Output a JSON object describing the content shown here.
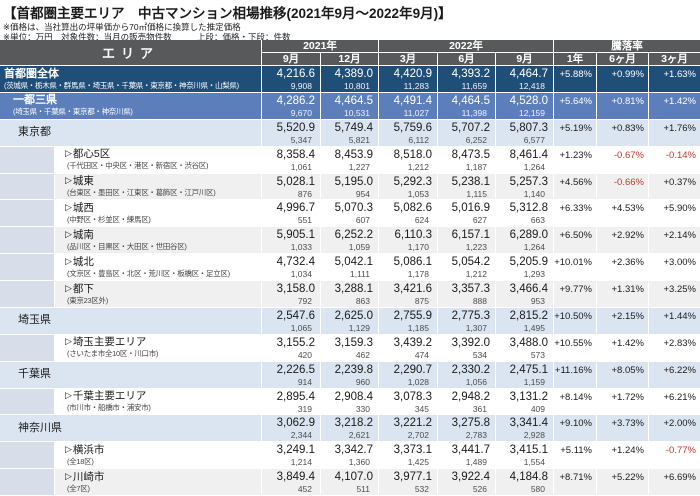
{
  "title": "【首都圏主要エリア　中古マンション相場推移(2021年9月～2022年9月)】",
  "notes": {
    "note1": "※価格は、当社算出の坪単価から70㎡価格に換算した推定価格",
    "note2": "※単位：万円　対象件数：当月の販売物件数",
    "legend": "上段：価格・下段：件数"
  },
  "header": {
    "area_label": "エリア",
    "groups": [
      "2021年",
      "2022年",
      "騰落率"
    ],
    "columns": [
      "9月",
      "12月",
      "3月",
      "6月",
      "9月",
      "1年",
      "6ヶ月",
      "3ヶ月"
    ]
  },
  "config": {
    "triangle_marker": "▷",
    "colors": {
      "header_bg": "#58595b",
      "region1_bg": "#1f4e79",
      "region2_bg": "#5c7fbc",
      "prefecture_bg": "#dbe5f1",
      "stripe_bg": "#f0f0f0",
      "indent_strip_bg": "#d8dee9",
      "negative_rate": "#c0392b"
    }
  },
  "chart_data": {
    "type": "table",
    "title": "首都圏主要エリア 中古マンション相場推移(2021年9月～2022年9月)",
    "unit": "万円",
    "value_legend": "上段：価格・下段：件数",
    "columns": [
      "エリア",
      "2021年9月",
      "2021年12月",
      "2022年3月",
      "2022年6月",
      "2022年9月",
      "騰落率1年",
      "騰落率6ヶ月",
      "騰落率3ヶ月"
    ],
    "rows": [
      {
        "name": "首都圏全体",
        "sub": "(茨城県・栃木県・群馬県・埼玉県・千葉県・東京都・神奈川県・山梨県)",
        "style": "region1",
        "indent": false,
        "prices": [
          "4,216.6",
          "4,389.0",
          "4,420.9",
          "4,393.2",
          "4,464.7"
        ],
        "counts": [
          "9,908",
          "10,801",
          "11,283",
          "11,659",
          "12,418"
        ],
        "rates": [
          "+5.88%",
          "+0.99%",
          "+1.63%"
        ]
      },
      {
        "name": "一都三県",
        "sub": "(埼玉県・千葉県・東京都・神奈川県)",
        "style": "region2",
        "indent": false,
        "prices": [
          "4,286.2",
          "4,464.5",
          "4,491.4",
          "4,464.5",
          "4,528.0"
        ],
        "counts": [
          "9,670",
          "10,531",
          "11,027",
          "11,398",
          "12,159"
        ],
        "rates": [
          "+5.64%",
          "+0.81%",
          "+1.42%"
        ]
      },
      {
        "name": "東京都",
        "sub": null,
        "style": "pref",
        "indent": false,
        "prices": [
          "5,520.9",
          "5,749.4",
          "5,759.6",
          "5,707.2",
          "5,807.3"
        ],
        "counts": [
          "5,347",
          "5,821",
          "6,112",
          "6,252",
          "6,577"
        ],
        "rates": [
          "+5.19%",
          "+0.83%",
          "+1.76%"
        ]
      },
      {
        "name": "都心5区",
        "sub": "(千代田区・中央区・港区・新宿区・渋谷区)",
        "style": "sub1",
        "indent": true,
        "prices": [
          "8,358.4",
          "8,453.9",
          "8,518.0",
          "8,473.5",
          "8,461.4"
        ],
        "counts": [
          "1,061",
          "1,227",
          "1,212",
          "1,187",
          "1,264"
        ],
        "rates": [
          "+1.23%",
          "-0.67%",
          "-0.14%"
        ]
      },
      {
        "name": "城東",
        "sub": "(台東区・墨田区・江東区・葛飾区・江戸川区)",
        "style": "sub2",
        "indent": true,
        "prices": [
          "5,028.1",
          "5,195.0",
          "5,292.3",
          "5,238.1",
          "5,257.3"
        ],
        "counts": [
          "876",
          "954",
          "1,053",
          "1,115",
          "1,140"
        ],
        "rates": [
          "+4.56%",
          "-0.66%",
          "+0.37%"
        ]
      },
      {
        "name": "城西",
        "sub": "(中野区・杉並区・練馬区)",
        "style": "sub1",
        "indent": true,
        "prices": [
          "4,996.7",
          "5,070.3",
          "5,082.6",
          "5,016.9",
          "5,312.8"
        ],
        "counts": [
          "551",
          "607",
          "624",
          "627",
          "663"
        ],
        "rates": [
          "+6.33%",
          "+4.53%",
          "+5.90%"
        ]
      },
      {
        "name": "城南",
        "sub": "(品川区・目黒区・大田区・世田谷区)",
        "style": "sub2",
        "indent": true,
        "prices": [
          "5,905.1",
          "6,252.2",
          "6,110.3",
          "6,157.1",
          "6,289.0"
        ],
        "counts": [
          "1,033",
          "1,059",
          "1,170",
          "1,223",
          "1,264"
        ],
        "rates": [
          "+6.50%",
          "+2.92%",
          "+2.14%"
        ]
      },
      {
        "name": "城北",
        "sub": "(文京区・豊島区・北区・荒川区・板橋区・足立区)",
        "style": "sub1",
        "indent": true,
        "prices": [
          "4,732.4",
          "5,042.1",
          "5,086.1",
          "5,054.2",
          "5,205.9"
        ],
        "counts": [
          "1,034",
          "1,111",
          "1,178",
          "1,212",
          "1,293"
        ],
        "rates": [
          "+10.01%",
          "+2.36%",
          "+3.00%"
        ]
      },
      {
        "name": "都下",
        "sub": "(東京23区外)",
        "style": "sub2",
        "indent": true,
        "prices": [
          "3,158.0",
          "3,288.1",
          "3,421.6",
          "3,357.3",
          "3,466.4"
        ],
        "counts": [
          "792",
          "863",
          "875",
          "888",
          "953"
        ],
        "rates": [
          "+9.77%",
          "+1.31%",
          "+3.25%"
        ]
      },
      {
        "name": "埼玉県",
        "sub": null,
        "style": "pref",
        "indent": false,
        "prices": [
          "2,547.6",
          "2,625.0",
          "2,755.9",
          "2,775.3",
          "2,815.2"
        ],
        "counts": [
          "1,065",
          "1,129",
          "1,185",
          "1,307",
          "1,495"
        ],
        "rates": [
          "+10.50%",
          "+2.15%",
          "+1.44%"
        ]
      },
      {
        "name": "埼玉主要エリア",
        "sub": "(さいたま市全10区・川口市)",
        "style": "sub1",
        "indent": true,
        "prices": [
          "3,155.2",
          "3,159.3",
          "3,439.2",
          "3,392.0",
          "3,488.0"
        ],
        "counts": [
          "420",
          "462",
          "474",
          "534",
          "573"
        ],
        "rates": [
          "+10.55%",
          "+1.42%",
          "+2.83%"
        ]
      },
      {
        "name": "千葉県",
        "sub": null,
        "style": "pref",
        "indent": false,
        "prices": [
          "2,226.5",
          "2,239.8",
          "2,290.7",
          "2,330.2",
          "2,475.1"
        ],
        "counts": [
          "914",
          "960",
          "1,028",
          "1,056",
          "1,159"
        ],
        "rates": [
          "+11.16%",
          "+8.05%",
          "+6.22%"
        ]
      },
      {
        "name": "千葉主要エリア",
        "sub": "(市川市・船橋市・浦安市)",
        "style": "sub1",
        "indent": true,
        "prices": [
          "2,895.4",
          "2,908.4",
          "3,078.3",
          "2,948.2",
          "3,131.2"
        ],
        "counts": [
          "319",
          "330",
          "345",
          "361",
          "409"
        ],
        "rates": [
          "+8.14%",
          "+1.72%",
          "+6.21%"
        ]
      },
      {
        "name": "神奈川県",
        "sub": null,
        "style": "pref",
        "indent": false,
        "prices": [
          "3,062.9",
          "3,218.2",
          "3,221.2",
          "3,275.8",
          "3,341.4"
        ],
        "counts": [
          "2,344",
          "2,621",
          "2,702",
          "2,783",
          "2,928"
        ],
        "rates": [
          "+9.10%",
          "+3.73%",
          "+2.00%"
        ]
      },
      {
        "name": "横浜市",
        "sub": "(全18区)",
        "style": "sub1",
        "indent": true,
        "prices": [
          "3,249.1",
          "3,342.7",
          "3,373.1",
          "3,441.7",
          "3,415.1"
        ],
        "counts": [
          "1,214",
          "1,360",
          "1,425",
          "1,489",
          "1,554"
        ],
        "rates": [
          "+5.11%",
          "+1.24%",
          "-0.77%"
        ]
      },
      {
        "name": "川崎市",
        "sub": "(全7区)",
        "style": "sub2",
        "indent": true,
        "prices": [
          "3,849.4",
          "4,107.0",
          "3,977.1",
          "3,922.4",
          "4,184.8"
        ],
        "counts": [
          "452",
          "511",
          "532",
          "526",
          "580"
        ],
        "rates": [
          "+8.71%",
          "+5.22%",
          "+6.69%"
        ]
      }
    ]
  }
}
